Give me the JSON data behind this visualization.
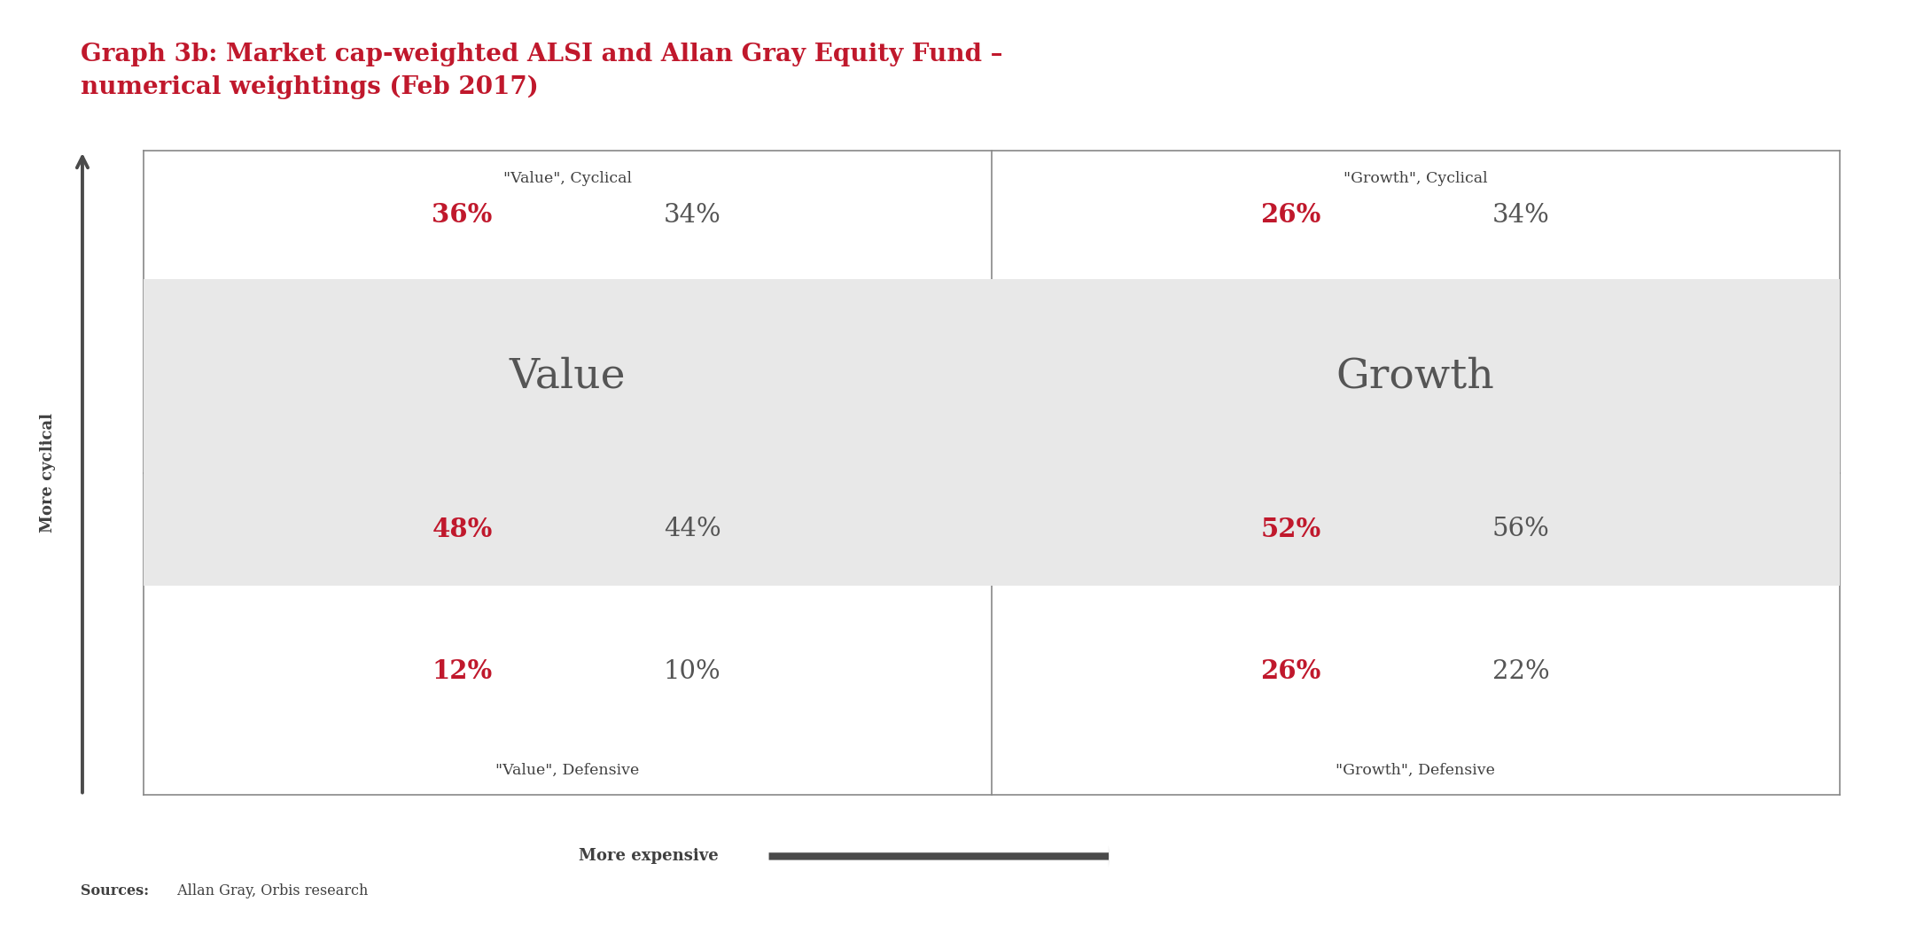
{
  "title_line1": "Graph 3b: Market cap-weighted ALSI and Allan Gray Equity Fund –",
  "title_line2": "numerical weightings (Feb 2017)",
  "title_color": "#c0182c",
  "title_fontsize": 20,
  "background_color": "#ffffff",
  "box_bg_color": "#e8e8e8",
  "quadrants": {
    "value": {
      "top_label": "\"Value\", Cyclical",
      "top_red": "36%",
      "top_gray": "34%",
      "box_label": "Value",
      "mid_red": "48%",
      "mid_gray": "44%",
      "bot_label": "\"Value\", Defensive",
      "bot_red": "12%",
      "bot_gray": "10%"
    },
    "growth": {
      "top_label": "\"Growth\", Cyclical",
      "top_red": "26%",
      "top_gray": "34%",
      "box_label": "Growth",
      "mid_red": "52%",
      "mid_gray": "56%",
      "bot_label": "\"Growth\", Defensive",
      "bot_red": "26%",
      "bot_gray": "22%"
    }
  },
  "y_axis_label": "More cyclical",
  "x_axis_label": "More expensive",
  "sources_bold": "Sources:",
  "sources_normal": " Allan Gray, Orbis research",
  "red_color": "#c0182c",
  "gray_color": "#555555",
  "dark_color": "#404040",
  "arrow_color": "#4a4a4a",
  "line_color": "#888888"
}
